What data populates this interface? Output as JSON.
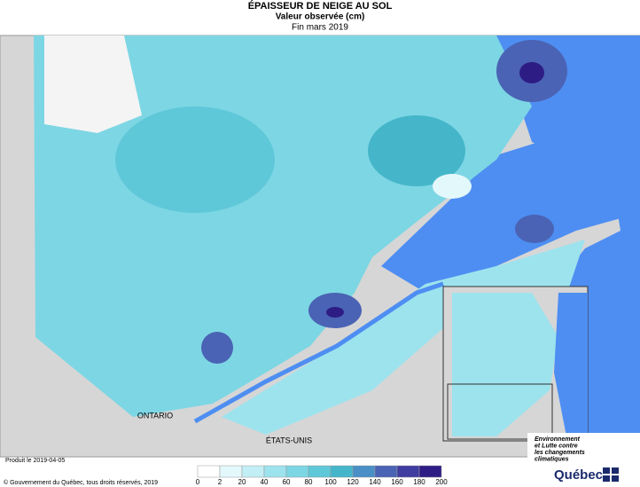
{
  "header": {
    "title": "ÉPAISSEUR DE NEIGE AU SOL",
    "subtitle": "Valeur observée (cm)",
    "period": "Fin mars 2019"
  },
  "map": {
    "labels": [
      "ONTARIO",
      "ÉTATS-UNIS"
    ]
  },
  "legend": {
    "ticks": [
      0,
      2,
      20,
      40,
      60,
      80,
      100,
      120,
      140,
      160,
      180,
      200
    ],
    "colors": [
      "#ffffff",
      "#e3f8fb",
      "#c2eef5",
      "#9de3ee",
      "#7dd6e4",
      "#5fc8d8",
      "#45b6c9",
      "#4a8fc6",
      "#4a63b4",
      "#3f3da0",
      "#2e1c85"
    ]
  },
  "footer": {
    "produced": "Produit le 2019-04-05",
    "copyright": "© Gouvernement du Québec, tous droits réservés, 2019",
    "ministry": [
      "Environnement",
      "et Lutte contre",
      "les changements",
      "climatiques"
    ],
    "brand": "Québec"
  }
}
